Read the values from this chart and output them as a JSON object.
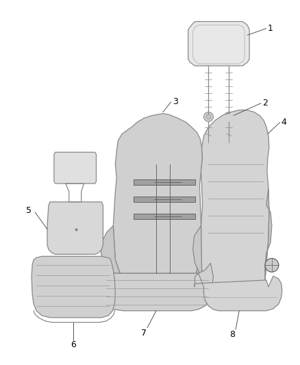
{
  "background_color": "#ffffff",
  "line_color": "#888888",
  "dark_line": "#555555",
  "label_color": "#000000",
  "seat_fill": "#d8d8d8",
  "fig_width": 4.38,
  "fig_height": 5.33,
  "dpi": 100,
  "parts": [
    "1",
    "2",
    "3",
    "4",
    "5",
    "6",
    "7",
    "8"
  ]
}
